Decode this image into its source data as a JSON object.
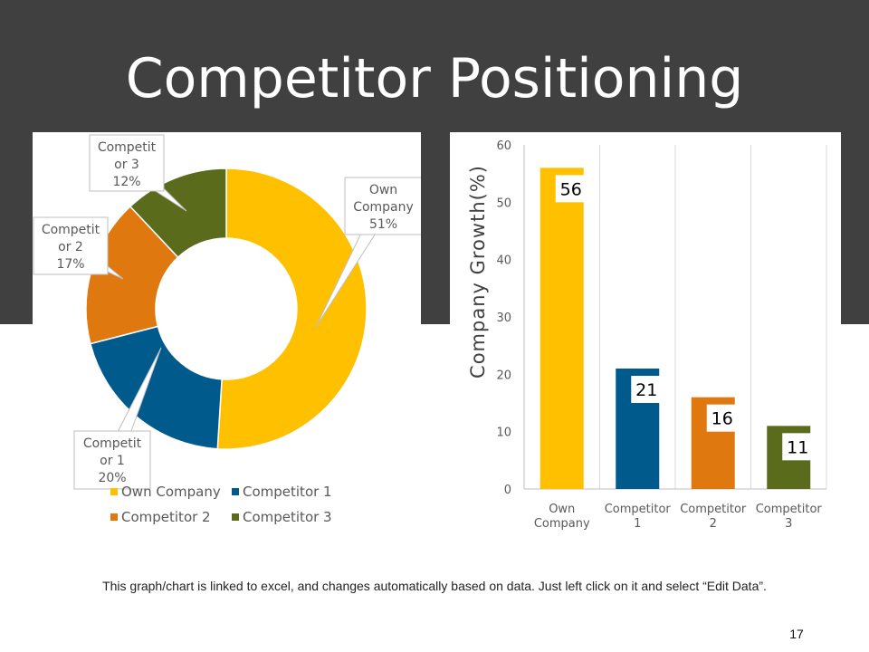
{
  "title": "Competitor Positioning",
  "footnote": "This graph/chart is linked to excel, and changes automatically  based on data. Just left click on it and select “Edit Data”.",
  "page_number": "17",
  "chart_data": [
    {
      "type": "pie",
      "variant": "doughnut",
      "slices": [
        {
          "name": "Own Company",
          "value": 51,
          "color": "#FFC000",
          "label_lines": [
            "Own",
            "Company",
            "51%"
          ]
        },
        {
          "name": "Competitor 1",
          "value": 20,
          "color": "#005A8C",
          "label_lines": [
            "Competit",
            "or 1",
            "20%"
          ]
        },
        {
          "name": "Competitor 2",
          "value": 17,
          "color": "#E07810",
          "label_lines": [
            "Competit",
            "or 2",
            "17%"
          ]
        },
        {
          "name": "Competitor 3",
          "value": 12,
          "color": "#5B6B1C",
          "label_lines": [
            "Competit",
            "or 3",
            "12%"
          ]
        }
      ],
      "legend": [
        "Own Company",
        "Competitor 1",
        "Competitor 2",
        "Competitor 3"
      ],
      "legend_position": "bottom"
    },
    {
      "type": "bar",
      "categories": [
        {
          "name": "Own Company",
          "lines": [
            "Own",
            "Company"
          ]
        },
        {
          "name": "Competitor 1",
          "lines": [
            "Competitor",
            "1"
          ]
        },
        {
          "name": "Competitor 2",
          "lines": [
            "Competitor",
            "2"
          ]
        },
        {
          "name": "Competitor 3",
          "lines": [
            "Competitor",
            "3"
          ]
        }
      ],
      "values": [
        56,
        21,
        16,
        11
      ],
      "colors": [
        "#FFC000",
        "#005A8C",
        "#E07810",
        "#5B6B1C"
      ],
      "ylabel": "Company Growth(%)",
      "ylim": [
        0,
        60
      ],
      "yticks": [
        0,
        10,
        20,
        30,
        40,
        50,
        60
      ],
      "grid": "vertical separators"
    }
  ]
}
